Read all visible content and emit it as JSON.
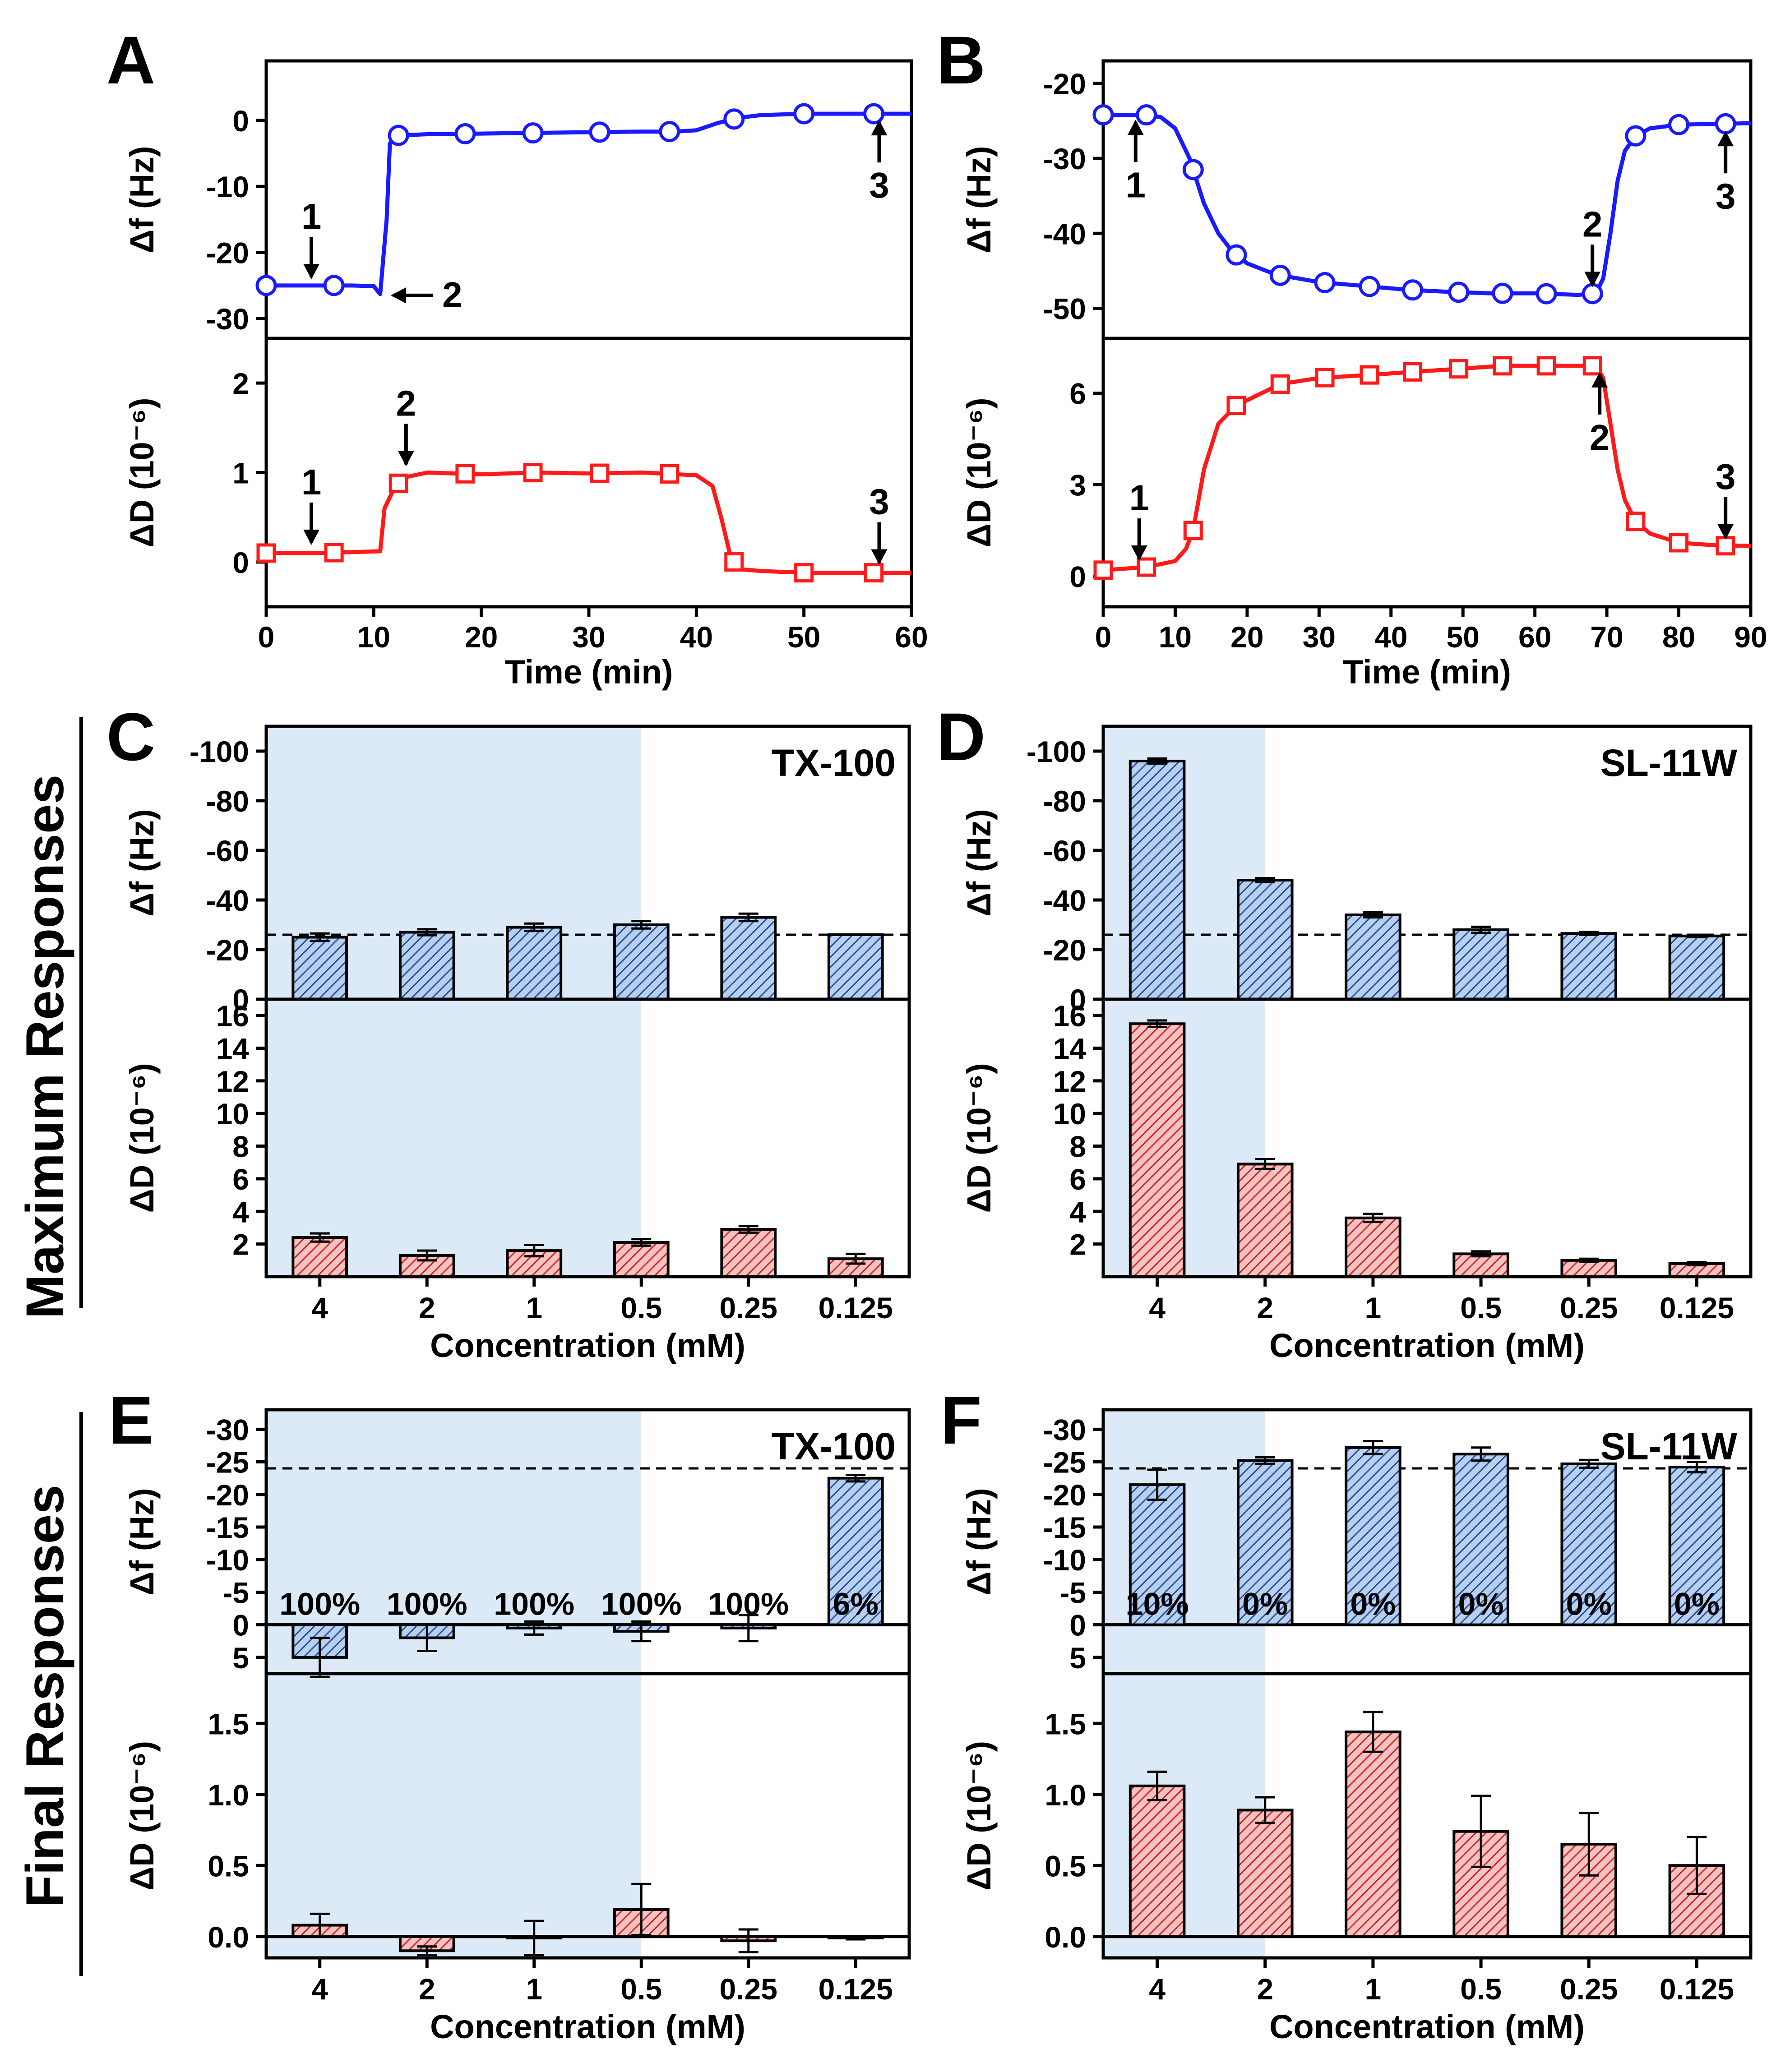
{
  "figure": {
    "row_label_cd": "Maximum Responses",
    "row_label_ef": "Final Responses"
  },
  "colors": {
    "blue_line": "#1a1aff",
    "red_line": "#ff1a1a",
    "bar_blue": "#5b8fd6",
    "bar_red": "#e04848",
    "shade": "#dce9f6",
    "axis": "#000000"
  },
  "chart_data": [
    {
      "panel": "A",
      "type": "line",
      "xlabel": "Time (min)",
      "xlim": [
        0,
        60
      ],
      "xticks": [
        0,
        10,
        20,
        30,
        40,
        50,
        60
      ],
      "top": {
        "ylabel": "Δf (Hz)",
        "ylim": [
          -33,
          9
        ],
        "yticks": [
          0,
          -10,
          -20,
          -30
        ],
        "series": {
          "name": "Δf",
          "x": [
            0,
            2,
            4,
            6,
            8,
            10,
            10.6,
            11.2,
            11.5,
            12,
            15,
            20,
            25,
            30,
            35,
            38,
            40,
            42,
            44,
            46,
            48,
            50,
            52,
            55,
            58,
            60
          ],
          "y": [
            -25,
            -25,
            -25,
            -25,
            -25,
            -25.1,
            -26.3,
            -15,
            -3.5,
            -2.3,
            -2.1,
            -2.0,
            -1.9,
            -1.8,
            -1.7,
            -1.7,
            -1.5,
            -0.4,
            0.4,
            0.8,
            0.9,
            1.0,
            1.0,
            1.0,
            1.0,
            1.0
          ],
          "markers_x": [
            0,
            6.3,
            12.3,
            18.5,
            24.8,
            31,
            37.5,
            43.5,
            50,
            56.5
          ]
        },
        "annotations": [
          {
            "label": "1",
            "x": 4.2,
            "y": -25,
            "dir": "down"
          },
          {
            "label": "2",
            "x": 11,
            "y": -26.5,
            "dir": "left"
          },
          {
            "label": "3",
            "x": 57,
            "y": 1,
            "dir": "up"
          }
        ]
      },
      "bottom": {
        "ylabel": "ΔD (10⁻⁶)",
        "ylim": [
          -0.5,
          2.5
        ],
        "yticks": [
          0,
          1,
          2
        ],
        "series": {
          "name": "ΔD",
          "x": [
            0,
            5,
            10.6,
            11,
            12,
            13,
            15,
            20,
            25,
            30,
            35,
            40,
            41.5,
            42.3,
            43.2,
            44,
            46,
            50,
            55,
            60
          ],
          "y": [
            0.1,
            0.1,
            0.12,
            0.6,
            0.85,
            0.95,
            1.0,
            0.98,
            1.0,
            0.99,
            1.0,
            0.97,
            0.85,
            0.5,
            0.05,
            -0.08,
            -0.1,
            -0.12,
            -0.12,
            -0.12
          ],
          "markers_x": [
            0,
            6.3,
            12.3,
            18.5,
            24.8,
            31,
            37.5,
            43.5,
            50,
            56.5
          ]
        },
        "annotations": [
          {
            "label": "1",
            "x": 4.2,
            "y": 0.12,
            "dir": "down"
          },
          {
            "label": "2",
            "x": 13,
            "y": 1.0,
            "dir": "down"
          },
          {
            "label": "3",
            "x": 57,
            "y": -0.1,
            "dir": "down"
          }
        ]
      }
    },
    {
      "panel": "B",
      "type": "line",
      "xlabel": "Time (min)",
      "xlim": [
        0,
        90
      ],
      "xticks": [
        0,
        10,
        20,
        30,
        40,
        50,
        60,
        70,
        80,
        90
      ],
      "top": {
        "ylabel": "Δf (Hz)",
        "ylim": [
          -54,
          -17
        ],
        "yticks": [
          -20,
          -30,
          -40,
          -50
        ],
        "series": {
          "name": "Δf",
          "x": [
            0,
            3,
            6,
            8,
            10,
            12,
            14,
            16,
            18,
            20,
            24,
            30,
            36,
            42,
            48,
            54,
            60,
            66,
            68.5,
            69.5,
            70.5,
            71.5,
            72.5,
            74,
            76,
            80,
            86,
            90
          ],
          "y": [
            -24.2,
            -24.2,
            -24.2,
            -24.5,
            -26,
            -30,
            -36,
            -40,
            -42.5,
            -44,
            -45.5,
            -46.5,
            -47,
            -47.5,
            -47.8,
            -48,
            -48,
            -48.2,
            -48,
            -46,
            -40,
            -33,
            -29,
            -27,
            -26,
            -25.5,
            -25.4,
            -25.3
          ],
          "markers_x": [
            0,
            6,
            12.5,
            18.5,
            24.6,
            30.8,
            37,
            43,
            49.4,
            55.5,
            61.6,
            68,
            74,
            80,
            86.5
          ]
        },
        "annotations": [
          {
            "label": "1",
            "x": 4.5,
            "y": -24,
            "dir": "up"
          },
          {
            "label": "2",
            "x": 68,
            "y": -48,
            "dir": "down"
          },
          {
            "label": "3",
            "x": 86.5,
            "y": -25.5,
            "dir": "up"
          }
        ]
      },
      "bottom": {
        "ylabel": "ΔD (10⁻⁶)",
        "ylim": [
          -1,
          7.8
        ],
        "yticks": [
          0,
          3,
          6
        ],
        "series": {
          "name": "ΔD",
          "x": [
            0,
            6,
            10,
            11.5,
            12.5,
            14,
            16,
            18.5,
            22,
            24.6,
            30,
            37,
            43,
            49.4,
            55.5,
            61.6,
            66,
            68.5,
            69.5,
            70.5,
            71.5,
            72.5,
            74,
            76,
            80,
            86,
            90
          ],
          "y": [
            0.2,
            0.3,
            0.5,
            0.9,
            1.5,
            3.5,
            5.0,
            5.6,
            6.0,
            6.3,
            6.5,
            6.6,
            6.7,
            6.8,
            6.9,
            6.9,
            6.9,
            6.9,
            6.5,
            5.0,
            3.5,
            2.5,
            1.8,
            1.4,
            1.1,
            1.0,
            1.0
          ],
          "markers_x": [
            0,
            6,
            12.5,
            18.5,
            24.6,
            30.8,
            37,
            43,
            49.4,
            55.5,
            61.6,
            68,
            74,
            80,
            86.5
          ]
        },
        "annotations": [
          {
            "label": "1",
            "x": 5,
            "y": 0.3,
            "dir": "down"
          },
          {
            "label": "2",
            "x": 69,
            "y": 6.9,
            "dir": "up"
          },
          {
            "label": "3",
            "x": 86.5,
            "y": 1.0,
            "dir": "down"
          }
        ]
      }
    },
    {
      "panel": "C",
      "type": "bar",
      "label": "TX-100",
      "xlabel": "Concentration (mM)",
      "categories": [
        "4",
        "2",
        "1",
        "0.5",
        "0.25",
        "0.125"
      ],
      "shade_to": 3.5,
      "top": {
        "ylabel": "Δf (Hz)",
        "ylim": [
          0,
          -110
        ],
        "yticks": [
          0,
          -20,
          -40,
          -60,
          -80,
          -100
        ],
        "values": [
          -25,
          -27,
          -29,
          -30,
          -33,
          -26
        ],
        "errors": [
          1.5,
          1.2,
          1.5,
          1.5,
          1.5,
          0
        ],
        "dashed": -26
      },
      "bottom": {
        "ylabel": "ΔD (10⁻⁶)",
        "ylim": [
          0,
          17
        ],
        "yticks": [
          2,
          4,
          6,
          8,
          10,
          12,
          14,
          16
        ],
        "values": [
          2.4,
          1.3,
          1.6,
          2.1,
          2.9,
          1.1
        ],
        "errors": [
          0.25,
          0.3,
          0.35,
          0.2,
          0.2,
          0.3
        ]
      }
    },
    {
      "panel": "D",
      "type": "bar",
      "label": "SL-11W",
      "xlabel": "Concentration (mM)",
      "categories": [
        "4",
        "2",
        "1",
        "0.5",
        "0.25",
        "0.125"
      ],
      "shade_to": 1.5,
      "top": {
        "ylabel": "Δf (Hz)",
        "ylim": [
          0,
          -110
        ],
        "yticks": [
          0,
          -20,
          -40,
          -60,
          -80,
          -100
        ],
        "values": [
          -96,
          -48,
          -34,
          -28,
          -26.5,
          -25.5
        ],
        "errors": [
          1.0,
          0.8,
          1.0,
          1.2,
          0.6,
          0.5
        ],
        "dashed": -26
      },
      "bottom": {
        "ylabel": "ΔD (10⁻⁶)",
        "ylim": [
          0,
          17
        ],
        "yticks": [
          2,
          4,
          6,
          8,
          10,
          12,
          14,
          16
        ],
        "values": [
          15.5,
          6.9,
          3.6,
          1.4,
          1.0,
          0.8
        ],
        "errors": [
          0.2,
          0.3,
          0.25,
          0.15,
          0.1,
          0.1
        ]
      }
    },
    {
      "panel": "E",
      "type": "bar",
      "label": "TX-100",
      "xlabel": "Concentration (mM)",
      "categories": [
        "4",
        "2",
        "1",
        "0.5",
        "0.25",
        "0.125"
      ],
      "shade_to": 3.5,
      "top": {
        "ylabel": "Δf (Hz)",
        "ylim": [
          7.5,
          -33
        ],
        "yticks": [
          5,
          0,
          -5,
          -10,
          -15,
          -20,
          -25,
          -30
        ],
        "values": [
          5,
          2,
          0.5,
          1,
          0.5,
          -22.5
        ],
        "errors": [
          3,
          2,
          1,
          1.5,
          2,
          0.5
        ],
        "dashed": -24,
        "pct_labels": [
          "100%",
          "100%",
          "100%",
          "100%",
          "100%",
          "6%"
        ]
      },
      "bottom": {
        "ylabel": "ΔD (10⁻⁶)",
        "ylim": [
          -0.15,
          1.85
        ],
        "yticks": [
          0.0,
          0.5,
          1.0,
          1.5
        ],
        "values": [
          0.08,
          -0.1,
          -0.01,
          0.19,
          -0.03,
          -0.01
        ],
        "errors": [
          0.08,
          0.03,
          0.12,
          0.18,
          0.08,
          0.01
        ]
      }
    },
    {
      "panel": "F",
      "type": "bar",
      "label": "SL-11W",
      "xlabel": "Concentration (mM)",
      "categories": [
        "4",
        "2",
        "1",
        "0.5",
        "0.25",
        "0.125"
      ],
      "shade_to": 1.5,
      "top": {
        "ylabel": "Δf (Hz)",
        "ylim": [
          7.5,
          -33
        ],
        "yticks": [
          5,
          0,
          -5,
          -10,
          -15,
          -20,
          -25,
          -30
        ],
        "values": [
          -21.5,
          -25.2,
          -27.2,
          -26.2,
          -24.7,
          -24.2
        ],
        "errors": [
          2.3,
          0.5,
          1.0,
          1.0,
          0.6,
          0.8
        ],
        "dashed": -24,
        "pct_labels": [
          "10%",
          "0%",
          "0%",
          "0%",
          "0%",
          "0%"
        ]
      },
      "bottom": {
        "ylabel": "ΔD (10⁻⁶)",
        "ylim": [
          -0.15,
          1.85
        ],
        "yticks": [
          0.0,
          0.5,
          1.0,
          1.5
        ],
        "values": [
          1.06,
          0.89,
          1.44,
          0.74,
          0.65,
          0.5
        ],
        "errors": [
          0.1,
          0.09,
          0.14,
          0.25,
          0.22,
          0.2
        ]
      }
    }
  ]
}
